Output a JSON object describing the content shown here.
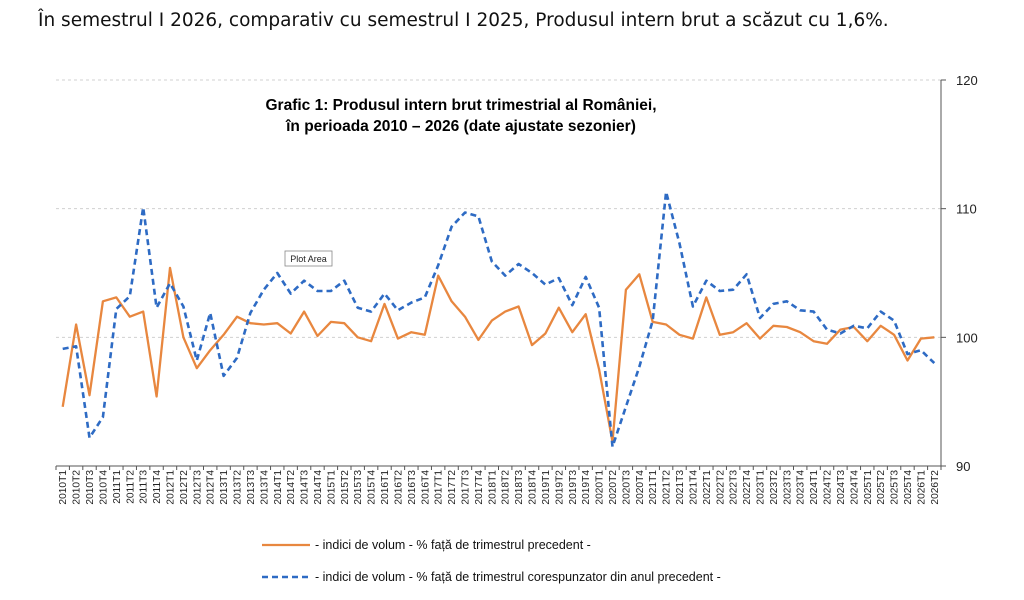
{
  "headline": "În semestrul I 2026, comparativ cu semestrul I 2025, Produsul intern brut a scăzut cu 1,6%.",
  "tooltip": "Plot Area",
  "colors": {
    "series1": "#E8873F",
    "series2": "#2E6BC4",
    "grid": "#d0d0d0"
  },
  "chart_data": {
    "type": "line",
    "title_lines": [
      "Grafic 1: Produsul intern brut trimestrial al României,",
      "în perioada 2010 – 2026 (date ajustate sezonier)"
    ],
    "ylim": [
      90,
      120
    ],
    "yticks": [
      90,
      100,
      110,
      120
    ],
    "y_axis_side": "right",
    "grid": "dashed horizontal",
    "legend_placement": "bottom",
    "x": [
      "2010T1",
      "2010T2",
      "2010T3",
      "2010T4",
      "2011T1",
      "2011T2",
      "2011T3",
      "2011T4",
      "2012T1",
      "2012T2",
      "2012T3",
      "2012T4",
      "2013T1",
      "2013T2",
      "2013T3",
      "2013T4",
      "2014T1",
      "2014T2",
      "2014T3",
      "2014T4",
      "2015T1",
      "2015T2",
      "2015T3",
      "2015T4",
      "2016T1",
      "2016T2",
      "2016T3",
      "2016T4",
      "2017T1",
      "2017T2",
      "2017T3",
      "2017T4",
      "2018T1",
      "2018T2",
      "2018T3",
      "2018T4",
      "2019T1",
      "2019T2",
      "2019T3",
      "2019T4",
      "2020T1",
      "2020T2",
      "2020T3",
      "2020T4",
      "2021T1",
      "2021T2",
      "2021T3",
      "2021T4",
      "2022T1",
      "2022T2",
      "2022T3",
      "2022T4",
      "2023T1",
      "2023T2",
      "2023T3",
      "2023T4",
      "2024T1",
      "2024T2",
      "2024T3",
      "2024T4",
      "2025T1",
      "2025T2",
      "2025T3",
      "2025T4",
      "2026T1",
      "2026T2"
    ],
    "series": [
      {
        "name": "- indici de volum - % față de trimestrul precedent -",
        "style": "solid",
        "values": [
          94.6,
          101.0,
          95.5,
          102.8,
          103.1,
          101.6,
          102.0,
          95.4,
          105.4,
          100.0,
          97.6,
          99.0,
          100.2,
          101.6,
          101.1,
          101.0,
          101.1,
          100.3,
          102.0,
          100.1,
          101.2,
          101.1,
          100.0,
          99.7,
          102.6,
          99.9,
          100.4,
          100.2,
          104.8,
          102.8,
          101.6,
          99.8,
          101.3,
          102.0,
          102.4,
          99.4,
          100.3,
          102.3,
          100.4,
          101.8,
          97.5,
          91.9,
          103.7,
          104.9,
          101.2,
          101.0,
          100.2,
          99.9,
          103.1,
          100.2,
          100.4,
          101.1,
          99.9,
          100.9,
          100.8,
          100.4,
          99.7,
          99.5,
          100.6,
          100.8,
          99.7,
          100.9,
          100.2,
          98.2,
          99.9,
          100.0
        ]
      },
      {
        "name": "- indici de volum - % față de trimestrul corespunzator din anul precedent -",
        "style": "dashed",
        "values": [
          99.1,
          99.3,
          92.2,
          93.8,
          102.2,
          103.2,
          110.1,
          102.3,
          104.2,
          102.4,
          98.2,
          101.9,
          97.0,
          98.4,
          101.9,
          103.7,
          105.0,
          103.4,
          104.4,
          103.6,
          103.6,
          104.4,
          102.3,
          102.0,
          103.4,
          102.1,
          102.7,
          103.1,
          105.6,
          108.6,
          109.7,
          109.4,
          105.9,
          104.8,
          105.7,
          105.0,
          104.1,
          104.6,
          102.5,
          104.7,
          102.3,
          91.5,
          94.6,
          97.7,
          101.3,
          111.3,
          107.3,
          102.4,
          104.4,
          103.6,
          103.7,
          104.9,
          101.5,
          102.6,
          102.8,
          102.1,
          102.0,
          100.6,
          100.3,
          100.9,
          100.7,
          102.0,
          101.3,
          98.7,
          99.0,
          98.0
        ]
      }
    ]
  }
}
